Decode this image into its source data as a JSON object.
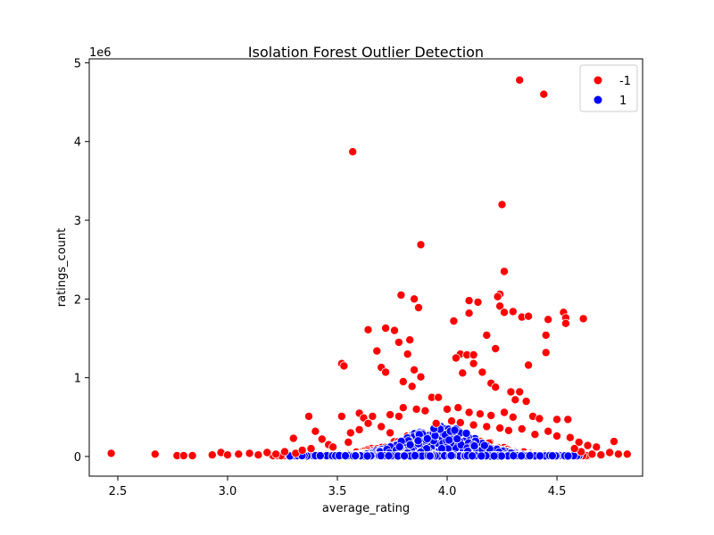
{
  "chart_data": {
    "type": "scatter",
    "title": "Isolation Forest Outlier Detection",
    "xlabel": "average_rating",
    "ylabel": "ratings_count",
    "y_offset_label": "1e6",
    "xlim": [
      2.37,
      4.89
    ],
    "ylim": [
      -250000,
      5050000
    ],
    "x_ticks": [
      2.5,
      3.0,
      3.5,
      4.0,
      4.5
    ],
    "x_tick_labels": [
      "2.5",
      "3.0",
      "3.5",
      "4.0",
      "4.5"
    ],
    "y_ticks": [
      0,
      1000000,
      2000000,
      3000000,
      4000000,
      5000000
    ],
    "y_tick_labels": [
      "0",
      "1",
      "2",
      "3",
      "4",
      "5"
    ],
    "grid": false,
    "legend_position": "top-right",
    "series": [
      {
        "name": "-1",
        "color": "#ff0000",
        "points": [
          [
            4.33,
            4780000
          ],
          [
            4.44,
            4600000
          ],
          [
            3.57,
            3870000
          ],
          [
            4.25,
            3200000
          ],
          [
            3.88,
            2690000
          ],
          [
            4.26,
            2350000
          ],
          [
            3.79,
            2050000
          ],
          [
            3.85,
            2000000
          ],
          [
            3.87,
            1890000
          ],
          [
            4.24,
            2060000
          ],
          [
            4.23,
            2030000
          ],
          [
            4.24,
            1910000
          ],
          [
            4.26,
            1830000
          ],
          [
            4.3,
            1840000
          ],
          [
            4.34,
            1770000
          ],
          [
            4.37,
            1780000
          ],
          [
            4.46,
            1740000
          ],
          [
            4.53,
            1830000
          ],
          [
            4.54,
            1760000
          ],
          [
            4.54,
            1690000
          ],
          [
            4.62,
            1750000
          ],
          [
            4.1,
            1980000
          ],
          [
            4.14,
            1960000
          ],
          [
            4.1,
            1820000
          ],
          [
            4.03,
            1720000
          ],
          [
            3.64,
            1610000
          ],
          [
            3.72,
            1630000
          ],
          [
            3.76,
            1600000
          ],
          [
            3.78,
            1450000
          ],
          [
            3.83,
            1480000
          ],
          [
            4.45,
            1540000
          ],
          [
            4.18,
            1540000
          ],
          [
            4.22,
            1370000
          ],
          [
            3.68,
            1340000
          ],
          [
            3.52,
            1180000
          ],
          [
            3.53,
            1150000
          ],
          [
            3.7,
            1130000
          ],
          [
            3.72,
            1070000
          ],
          [
            3.82,
            1300000
          ],
          [
            3.85,
            1100000
          ],
          [
            4.06,
            1300000
          ],
          [
            4.09,
            1290000
          ],
          [
            4.12,
            1290000
          ],
          [
            4.04,
            1250000
          ],
          [
            4.12,
            1180000
          ],
          [
            4.16,
            1070000
          ],
          [
            4.07,
            1060000
          ],
          [
            4.45,
            1320000
          ],
          [
            4.37,
            1160000
          ],
          [
            3.88,
            1010000
          ],
          [
            3.8,
            950000
          ],
          [
            3.84,
            890000
          ],
          [
            3.93,
            750000
          ],
          [
            3.96,
            750000
          ],
          [
            4.2,
            930000
          ],
          [
            4.22,
            880000
          ],
          [
            4.29,
            820000
          ],
          [
            4.31,
            720000
          ],
          [
            4.33,
            820000
          ],
          [
            4.36,
            700000
          ],
          [
            3.37,
            510000
          ],
          [
            3.52,
            510000
          ],
          [
            3.6,
            550000
          ],
          [
            3.62,
            490000
          ],
          [
            3.66,
            510000
          ],
          [
            3.74,
            530000
          ],
          [
            3.78,
            510000
          ],
          [
            3.8,
            620000
          ],
          [
            3.86,
            600000
          ],
          [
            3.9,
            580000
          ],
          [
            4.0,
            600000
          ],
          [
            4.05,
            620000
          ],
          [
            4.1,
            560000
          ],
          [
            4.15,
            540000
          ],
          [
            4.2,
            520000
          ],
          [
            4.26,
            560000
          ],
          [
            4.3,
            500000
          ],
          [
            4.39,
            510000
          ],
          [
            4.42,
            480000
          ],
          [
            4.5,
            470000
          ],
          [
            4.55,
            470000
          ],
          [
            3.43,
            220000
          ],
          [
            3.46,
            150000
          ],
          [
            3.3,
            230000
          ],
          [
            3.4,
            320000
          ],
          [
            3.56,
            300000
          ],
          [
            3.6,
            340000
          ],
          [
            3.64,
            420000
          ],
          [
            3.7,
            380000
          ],
          [
            3.74,
            300000
          ],
          [
            3.95,
            420000
          ],
          [
            4.02,
            450000
          ],
          [
            4.06,
            430000
          ],
          [
            4.12,
            400000
          ],
          [
            4.18,
            380000
          ],
          [
            4.24,
            360000
          ],
          [
            4.28,
            330000
          ],
          [
            4.34,
            350000
          ],
          [
            4.4,
            280000
          ],
          [
            4.46,
            320000
          ],
          [
            4.5,
            260000
          ],
          [
            4.56,
            240000
          ],
          [
            4.6,
            180000
          ],
          [
            4.64,
            140000
          ],
          [
            4.68,
            120000
          ],
          [
            4.76,
            190000
          ],
          [
            2.47,
            40000
          ],
          [
            2.67,
            30000
          ],
          [
            2.77,
            10000
          ],
          [
            2.8,
            10000
          ],
          [
            2.84,
            10000
          ],
          [
            2.93,
            20000
          ],
          [
            2.97,
            50000
          ],
          [
            3.0,
            20000
          ],
          [
            3.05,
            30000
          ],
          [
            3.1,
            40000
          ],
          [
            3.14,
            20000
          ],
          [
            3.18,
            50000
          ],
          [
            3.22,
            30000
          ],
          [
            3.26,
            60000
          ],
          [
            3.31,
            40000
          ],
          [
            3.34,
            80000
          ],
          [
            3.38,
            100000
          ],
          [
            3.48,
            120000
          ],
          [
            3.55,
            180000
          ],
          [
            4.66,
            30000
          ],
          [
            4.7,
            20000
          ],
          [
            4.74,
            50000
          ],
          [
            4.78,
            30000
          ],
          [
            4.82,
            30000
          ],
          [
            4.61,
            60000
          ],
          [
            4.58,
            100000
          ]
        ]
      },
      {
        "name": "1",
        "color": "#0000ff",
        "points": []
      }
    ]
  }
}
